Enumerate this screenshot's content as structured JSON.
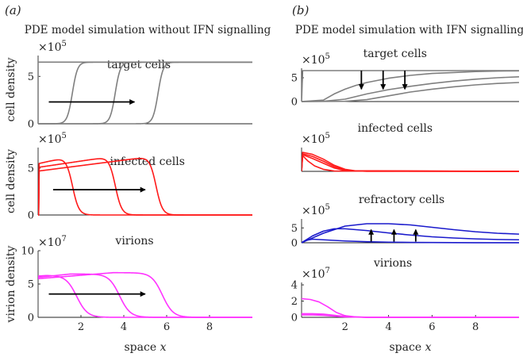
{
  "colors": {
    "target": "#7f7f7f",
    "infected": "#ff1a1a",
    "refractory": "#1a1acc",
    "virions": "#ff33ff",
    "arrow": "#000000"
  },
  "figure": {
    "panels": [
      {
        "label": "(a)",
        "title": "PDE model simulation without IFN signalling"
      },
      {
        "label": "(b)",
        "title": "PDE model simulation with IFN signalling"
      }
    ]
  },
  "chart_data": [
    {
      "id": "a-target",
      "type": "line",
      "panel": "(a)",
      "title": "target cells",
      "ylabel": "cell density",
      "exponent": "×10^5",
      "exp_base": "×10",
      "exp_power": "5",
      "xlabel": "",
      "xlim": [
        0,
        10
      ],
      "ylim": [
        0,
        7.2
      ],
      "yticks": [
        0,
        5
      ],
      "xticks": [],
      "color": "target",
      "series": [
        {
          "type": "front",
          "pos": 0.0,
          "left": 6.5,
          "right": 6.5,
          "width": 0.12
        },
        {
          "type": "front",
          "pos": 1.6,
          "left": 0,
          "right": 6.5,
          "width": 0.12
        },
        {
          "type": "front",
          "pos": 3.6,
          "left": 0,
          "right": 6.5,
          "width": 0.12
        },
        {
          "type": "front",
          "pos": 5.6,
          "left": 0,
          "right": 6.5,
          "width": 0.12
        }
      ],
      "arrows": [
        {
          "dir": "right",
          "x1": 0.5,
          "x2": 4.5,
          "y": 2.3
        }
      ]
    },
    {
      "id": "a-infected",
      "type": "line",
      "panel": "(a)",
      "title": "infected cells",
      "ylabel": "cell density",
      "exponent": "×10^5",
      "exp_base": "×10",
      "exp_power": "5",
      "xlabel": "",
      "xlim": [
        0,
        10
      ],
      "ylim": [
        0,
        7.2
      ],
      "yticks": [
        0,
        5
      ],
      "xticks": [],
      "color": "infected",
      "series": [
        {
          "type": "pulse",
          "x0": 0.05,
          "x1": 1.6,
          "y0": 5.5,
          "y1": 6.3,
          "width": 0.15
        },
        {
          "type": "pulse",
          "x0": 0.05,
          "x1": 3.6,
          "y0": 5.1,
          "y1": 6.3,
          "width": 0.15
        },
        {
          "type": "pulse",
          "x0": 0.05,
          "x1": 5.5,
          "y0": 4.7,
          "y1": 6.3,
          "width": 0.15
        }
      ],
      "arrows": [
        {
          "dir": "right",
          "x1": 0.7,
          "x2": 5.0,
          "y": 2.7
        }
      ]
    },
    {
      "id": "a-virions",
      "type": "line",
      "panel": "(a)",
      "title": "virions",
      "ylabel": "virion density",
      "exponent": "×10^7",
      "exp_base": "×10",
      "exp_power": "7",
      "xlabel": "space x",
      "xlim": [
        0,
        10
      ],
      "ylim": [
        0,
        10
      ],
      "yticks": [
        0,
        5,
        10
      ],
      "xticks": [
        2,
        4,
        6,
        8
      ],
      "color": "virions",
      "series": [
        {
          "type": "decay",
          "x0": 0,
          "y0": 6.2,
          "peak_x": 0.4,
          "peak_y": 6.3,
          "fall": 1.8,
          "width": 0.25
        },
        {
          "type": "decay",
          "x0": 0,
          "y0": 6.0,
          "peak_x": 1.5,
          "peak_y": 6.5,
          "fall": 3.8,
          "width": 0.25
        },
        {
          "type": "decay",
          "x0": 0,
          "y0": 5.8,
          "peak_x": 3.5,
          "peak_y": 6.7,
          "fall": 5.8,
          "width": 0.25
        }
      ],
      "arrows": [
        {
          "dir": "right",
          "x1": 0.5,
          "x2": 5.0,
          "y": 3.5
        }
      ]
    },
    {
      "id": "b-target",
      "type": "line",
      "panel": "(b)",
      "title": "target cells",
      "ylabel": "",
      "exponent": "×10^5",
      "exp_base": "×10",
      "exp_power": "5",
      "xlabel": "",
      "xlim": [
        0,
        10
      ],
      "ylim": [
        0,
        7
      ],
      "yticks": [
        0,
        5
      ],
      "xticks": [],
      "color": "target",
      "series": [
        {
          "type": "points",
          "x": [
            0,
            0.05,
            10
          ],
          "y": [
            0,
            6.5,
            6.5
          ]
        },
        {
          "type": "points",
          "x": [
            0,
            1.0,
            1.5,
            2.0,
            2.5,
            3.0,
            4.0,
            5.0,
            6.0,
            7.0,
            8.0,
            9.0,
            10.0
          ],
          "y": [
            0,
            0.3,
            1.6,
            2.6,
            3.4,
            4.0,
            4.9,
            5.5,
            5.9,
            6.1,
            6.3,
            6.4,
            6.45
          ]
        },
        {
          "type": "points",
          "x": [
            0,
            1.0,
            2.0,
            3.0,
            4.0,
            5.0,
            6.0,
            7.0,
            8.0,
            9.0,
            10.0
          ],
          "y": [
            0,
            0.05,
            0.5,
            1.6,
            2.5,
            3.2,
            3.8,
            4.3,
            4.7,
            5.0,
            5.2
          ]
        },
        {
          "type": "points",
          "x": [
            0,
            2.0,
            3.0,
            4.0,
            5.0,
            6.0,
            7.0,
            8.0,
            9.0,
            10.0
          ],
          "y": [
            0,
            0.05,
            0.4,
            1.2,
            2.0,
            2.6,
            3.1,
            3.5,
            3.8,
            4.0
          ]
        }
      ],
      "arrows": [
        {
          "dir": "down",
          "x": 2.75,
          "y1": 6.5,
          "y2": 2.6
        },
        {
          "dir": "down",
          "x": 3.75,
          "y1": 6.5,
          "y2": 2.6
        },
        {
          "dir": "down",
          "x": 4.75,
          "y1": 6.5,
          "y2": 2.6
        }
      ]
    },
    {
      "id": "b-infected",
      "type": "line",
      "panel": "(b)",
      "title": "infected cells",
      "ylabel": "",
      "exponent": "×10^5",
      "exp_base": "×10",
      "exp_power": "5",
      "xlabel": "",
      "xlim": [
        0,
        10
      ],
      "ylim": [
        0,
        7
      ],
      "yticks": [],
      "xticks": [],
      "color": "infected",
      "series": [
        {
          "type": "points",
          "x": [
            0,
            0.05,
            0.5,
            1.0,
            1.5,
            2.0,
            2.5,
            3.0,
            10
          ],
          "y": [
            0,
            5.6,
            5.0,
            3.6,
            1.8,
            0.6,
            0.15,
            0.02,
            0
          ]
        },
        {
          "type": "points",
          "x": [
            0,
            0.05,
            0.5,
            1.0,
            1.5,
            2.0,
            2.5,
            10
          ],
          "y": [
            0,
            5.2,
            4.4,
            3.0,
            1.4,
            0.4,
            0.1,
            0
          ]
        },
        {
          "type": "points",
          "x": [
            0,
            0.05,
            0.5,
            1.0,
            1.5,
            2.0,
            10
          ],
          "y": [
            0,
            4.9,
            3.8,
            2.4,
            1.0,
            0.2,
            0
          ]
        },
        {
          "type": "points",
          "x": [
            0,
            0.05,
            0.3,
            0.6,
            1.0,
            1.5,
            10
          ],
          "y": [
            0,
            4.6,
            3.0,
            1.6,
            0.6,
            0.1,
            0
          ]
        }
      ],
      "arrows": []
    },
    {
      "id": "b-refractory",
      "type": "line",
      "panel": "(b)",
      "title": "refractory cells",
      "ylabel": "",
      "exponent": "×10^5",
      "exp_base": "×10",
      "exp_power": "5",
      "xlabel": "",
      "xlim": [
        0,
        10
      ],
      "ylim": [
        0,
        8
      ],
      "yticks": [
        0,
        5
      ],
      "xticks": [],
      "color": "refractory",
      "series": [
        {
          "type": "points",
          "x": [
            0,
            1.0,
            2.0,
            3.0,
            4.0,
            5.0,
            6.0,
            7.0,
            8.0,
            9.0,
            10.0
          ],
          "y": [
            0,
            3.2,
            5.6,
            6.4,
            6.4,
            6.0,
            5.2,
            4.4,
            3.7,
            3.2,
            2.9
          ]
        },
        {
          "type": "points",
          "x": [
            0,
            0.5,
            1.0,
            1.5,
            2.0,
            3.0,
            4.0,
            5.0,
            6.0,
            7.0,
            8.0,
            9.0,
            10.0
          ],
          "y": [
            0,
            2.3,
            3.9,
            4.7,
            4.7,
            4.1,
            3.3,
            2.6,
            2.0,
            1.6,
            1.3,
            1.1,
            1.0
          ]
        },
        {
          "type": "points",
          "x": [
            0,
            0.2,
            0.5,
            1.0,
            2.0,
            3.0,
            4.0,
            5.0,
            6.0,
            7.0,
            8.0,
            10.0
          ],
          "y": [
            0,
            0.8,
            1.2,
            1.0,
            0.6,
            0.35,
            0.2,
            0.12,
            0.08,
            0.05,
            0.03,
            0.02
          ]
        }
      ],
      "arrows": [
        {
          "dir": "up",
          "x": 3.2,
          "y1": 0.4,
          "y2": 4.4
        },
        {
          "dir": "up",
          "x": 4.25,
          "y1": 0.4,
          "y2": 4.4
        },
        {
          "dir": "up",
          "x": 5.25,
          "y1": 0.4,
          "y2": 4.4
        }
      ]
    },
    {
      "id": "b-virions",
      "type": "line",
      "panel": "(b)",
      "title": "virions",
      "ylabel": "",
      "exponent": "×10^7",
      "exp_base": "×10",
      "exp_power": "7",
      "xlabel": "space x",
      "xlim": [
        0,
        10
      ],
      "ylim": [
        0,
        4.3
      ],
      "yticks": [
        0,
        2,
        4
      ],
      "xticks": [
        2,
        4,
        6,
        8
      ],
      "color": "virions",
      "series": [
        {
          "type": "points",
          "x": [
            0,
            0.4,
            0.8,
            1.2,
            1.6,
            2.0,
            2.5,
            3.0,
            10
          ],
          "y": [
            2.3,
            2.2,
            1.9,
            1.3,
            0.6,
            0.2,
            0.05,
            0,
            0
          ]
        },
        {
          "type": "points",
          "x": [
            0,
            0.5,
            1.0,
            1.5,
            2.0,
            3.0,
            10
          ],
          "y": [
            0.45,
            0.45,
            0.4,
            0.25,
            0.1,
            0.01,
            0
          ]
        },
        {
          "type": "points",
          "x": [
            0,
            0.5,
            1.0,
            1.5,
            2.0,
            3.0,
            10
          ],
          "y": [
            0.3,
            0.3,
            0.25,
            0.15,
            0.05,
            0.0,
            0
          ]
        }
      ],
      "arrows": []
    }
  ]
}
